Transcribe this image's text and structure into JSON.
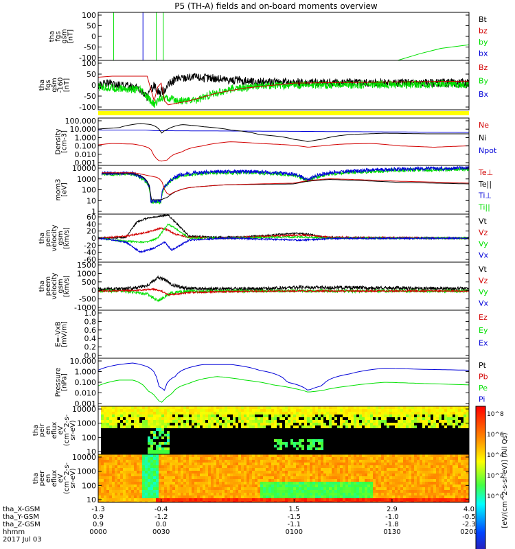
{
  "title": "P5 (TH-A) fields and on-board moments overview",
  "colors": {
    "black": "#000000",
    "red": "#d20000",
    "green": "#00e000",
    "blue": "#0000d8",
    "yellow": "#ffff00"
  },
  "chart_data": [
    {
      "type": "line",
      "id": "fgs",
      "ylabel_lines": [
        "tha",
        "fgs",
        "gsm",
        "[nT]"
      ],
      "yticks": [
        "100",
        "50",
        "0",
        "-50",
        "-100"
      ],
      "ylim": [
        -100,
        100
      ],
      "legend": [
        {
          "label": "Bt",
          "color": "black"
        },
        {
          "label": "bz",
          "color": "red"
        },
        {
          "label": "by",
          "color": "green"
        },
        {
          "label": "bx",
          "color": "blue"
        }
      ],
      "series": [
        {
          "name": "by",
          "color": "green",
          "x": [
            2.98,
            3.3,
            3.6,
            4.0
          ],
          "y": [
            -100,
            -72,
            -50,
            -35
          ]
        },
        {
          "name": "bx",
          "color": "blue",
          "x": [
            -0.66,
            -0.66
          ],
          "y": [
            -100,
            100
          ]
        },
        {
          "name": "by",
          "color": "green",
          "x": [
            -1.08,
            -1.08
          ],
          "y": [
            -100,
            100
          ]
        },
        {
          "name": "by",
          "color": "green",
          "x": [
            -0.47,
            -0.47
          ],
          "y": [
            -100,
            100
          ]
        },
        {
          "name": "by",
          "color": "green",
          "x": [
            -0.37,
            -0.37
          ],
          "y": [
            -100,
            100
          ]
        }
      ]
    },
    {
      "type": "line",
      "id": "fgs_ssl",
      "ylabel_lines": [
        "tha",
        "fgs",
        "gsm",
        "-160",
        "[nT]"
      ],
      "yticks": [
        "100",
        "50",
        "0",
        "-50",
        "-100"
      ],
      "ylim": [
        -125,
        125
      ],
      "legend": [
        {
          "label": "Bz",
          "color": "red"
        },
        {
          "label": "By",
          "color": "green"
        },
        {
          "label": "Bx",
          "color": "blue"
        }
      ],
      "series": [
        {
          "name": "Bt",
          "color": "black",
          "x": [
            -1.3,
            -1.15,
            -1.08,
            -0.75,
            -0.6,
            -0.5,
            -0.42,
            -0.35,
            -0.2,
            0.0,
            0.3,
            0.6,
            1.0,
            4.0
          ],
          "y": [
            -5,
            10,
            0,
            -10,
            -60,
            0,
            -40,
            -20,
            30,
            40,
            35,
            25,
            15,
            10
          ],
          "noise": 22
        },
        {
          "name": "By",
          "color": "green",
          "x": [
            -1.3,
            -1.1,
            -0.9,
            -0.7,
            -0.5,
            -0.4,
            -0.3,
            -0.1,
            0.1,
            0.3,
            0.6,
            1.0,
            1.5,
            4.0
          ],
          "y": [
            -10,
            -15,
            -20,
            -25,
            -100,
            -60,
            -70,
            -80,
            -75,
            -50,
            -20,
            -5,
            0,
            5
          ],
          "noise": 20
        },
        {
          "name": "Bz",
          "color": "red",
          "x": [
            -1.3,
            -1.1,
            -0.6,
            -0.5,
            -0.45,
            -0.4,
            -0.35,
            -0.3,
            0.0,
            0.4,
            0.8,
            1.5,
            4.0
          ],
          "y": [
            40,
            45,
            45,
            -80,
            -10,
            10,
            -80,
            -100,
            -80,
            -40,
            -15,
            10,
            20
          ]
        }
      ]
    },
    {
      "type": "line",
      "id": "density",
      "log": true,
      "ylabel_lines": [
        "Density",
        "[cm-3]"
      ],
      "yticks": [
        "100.000",
        "10.000",
        "1.000",
        "0.100",
        "0.010",
        "0.001"
      ],
      "ylim": [
        0.001,
        1000
      ],
      "legend": [
        {
          "label": "Ne",
          "color": "red"
        },
        {
          "label": "Ni",
          "color": "black"
        },
        {
          "label": "Npot",
          "color": "blue"
        }
      ],
      "series": [
        {
          "name": "Npot",
          "color": "blue",
          "x": [
            -1.3,
            -0.6,
            -0.5,
            4.0
          ],
          "y": [
            30,
            30,
            25,
            15
          ]
        },
        {
          "name": "Ni",
          "color": "black",
          "x": [
            -1.3,
            -1.0,
            -0.7,
            -0.55,
            -0.4,
            -0.3,
            -0.1,
            0.2,
            0.6,
            1.0,
            1.5,
            1.7,
            1.9,
            2.3,
            2.8,
            3.4,
            4.0
          ],
          "y": [
            40,
            60,
            200,
            150,
            10,
            40,
            150,
            80,
            30,
            8,
            2,
            1,
            2,
            8,
            12,
            10,
            10
          ]
        },
        {
          "name": "Ne",
          "color": "red",
          "x": [
            -1.3,
            -1.1,
            -0.8,
            -0.6,
            -0.5,
            -0.42,
            -0.3,
            -0.1,
            0.2,
            0.6,
            1.0,
            1.4,
            1.7,
            1.9,
            2.2,
            2.6,
            3.0,
            3.5,
            4.0
          ],
          "y": [
            0.4,
            0.6,
            0.5,
            0.2,
            0.01,
            0.003,
            0.005,
            0.05,
            0.3,
            1,
            0.6,
            0.4,
            0.2,
            0.3,
            0.5,
            0.6,
            0.3,
            0.2,
            0.3
          ]
        }
      ]
    },
    {
      "type": "line",
      "id": "temperature",
      "log": true,
      "ylabel_lines": [
        "mom3",
        "[eV]"
      ],
      "yticks": [
        "10000",
        "1000",
        "100",
        "10",
        "1"
      ],
      "ylim": [
        1,
        10000
      ],
      "legend": [
        {
          "label": "Te⊥",
          "color": "red"
        },
        {
          "label": "Te||",
          "color": "black"
        },
        {
          "label": "Ti⊥",
          "color": "blue"
        },
        {
          "label": "Ti||",
          "color": "green"
        }
      ],
      "series": [
        {
          "name": "Ti||",
          "color": "green",
          "x": [
            -1.25,
            -0.8,
            -0.7,
            -0.55,
            -0.4,
            -0.3,
            -0.1,
            0.3,
            1.0,
            1.5,
            1.7,
            2.0,
            3.0,
            4.0
          ],
          "y": [
            2000,
            2000,
            1000,
            10,
            10,
            300,
            1500,
            2500,
            2500,
            1500,
            500,
            2000,
            4000,
            5000
          ],
          "noise": 0.15
        },
        {
          "name": "Ti⊥",
          "color": "blue",
          "x": [
            -1.25,
            -0.8,
            -0.7,
            -0.55,
            -0.4,
            -0.3,
            -0.1,
            0.3,
            1.0,
            1.5,
            1.7,
            2.0,
            3.0,
            4.0
          ],
          "y": [
            2200,
            2200,
            1200,
            12,
            12,
            350,
            1800,
            3000,
            3000,
            1800,
            600,
            2500,
            5000,
            6000
          ],
          "noise": 0.15
        },
        {
          "name": "Te||",
          "color": "black",
          "x": [
            -1.25,
            -0.8,
            -0.7,
            -0.55,
            -0.4,
            -0.3,
            0.0,
            0.5,
            1.0,
            1.5,
            1.7,
            2.0,
            3.0,
            4.0
          ],
          "y": [
            2000,
            2000,
            1500,
            15,
            15,
            25,
            150,
            250,
            280,
            300,
            500,
            700,
            400,
            300
          ]
        },
        {
          "name": "Te⊥",
          "color": "red",
          "x": [
            -1.25,
            -0.8,
            -0.6,
            -0.45,
            -0.35,
            -0.3,
            0.0,
            0.5,
            1.0,
            1.5,
            1.7,
            2.0,
            3.0,
            4.0
          ],
          "y": [
            2500,
            2500,
            1500,
            1000,
            100,
            30,
            150,
            250,
            300,
            350,
            550,
            800,
            500,
            350
          ]
        }
      ]
    },
    {
      "type": "line",
      "id": "peim_velocity",
      "ylabel_lines": [
        "tha",
        "peim",
        "velocity",
        "gsm",
        "[km/s]"
      ],
      "yticks": [
        "60",
        "40",
        "20",
        "0",
        "-20",
        "-40",
        "-60"
      ],
      "ylim": [
        -60,
        60
      ],
      "legend": [
        {
          "label": "Vt",
          "color": "black"
        },
        {
          "label": "Vz",
          "color": "red"
        },
        {
          "label": "Vy",
          "color": "green"
        },
        {
          "label": "Vx",
          "color": "blue"
        }
      ],
      "series": [
        {
          "name": "Vt",
          "color": "black",
          "x": [
            -1.3,
            -0.9,
            -0.75,
            -0.6,
            -0.4,
            -0.3,
            -0.2,
            0.0,
            0.4,
            0.8,
            1.2,
            1.5,
            1.7,
            1.9,
            2.2,
            4.0
          ],
          "y": [
            0,
            2,
            40,
            50,
            55,
            58,
            40,
            5,
            2,
            3,
            8,
            12,
            10,
            3,
            1,
            0
          ],
          "noise": 2
        },
        {
          "name": "Vz",
          "color": "red",
          "x": [
            -1.3,
            -0.9,
            -0.6,
            -0.4,
            -0.3,
            -0.2,
            0.0,
            0.5,
            1.2,
            1.6,
            2.0,
            4.0
          ],
          "y": [
            0,
            5,
            15,
            25,
            20,
            10,
            2,
            0,
            5,
            8,
            2,
            0
          ],
          "noise": 2
        },
        {
          "name": "Vy",
          "color": "green",
          "x": [
            -1.3,
            -0.9,
            -0.6,
            -0.45,
            -0.3,
            -0.2,
            0.0,
            0.5,
            1.2,
            1.6,
            2.0,
            4.0
          ],
          "y": [
            0,
            -8,
            -10,
            0,
            35,
            25,
            0,
            0,
            2,
            3,
            0,
            0
          ],
          "noise": 2
        },
        {
          "name": "Vx",
          "color": "blue",
          "x": [
            -1.3,
            -0.9,
            -0.7,
            -0.5,
            -0.35,
            -0.25,
            -0.15,
            0.0,
            0.5,
            1.2,
            1.6,
            2.0,
            4.0
          ],
          "y": [
            0,
            -10,
            -35,
            -25,
            -10,
            -30,
            -20,
            -5,
            0,
            -3,
            -5,
            -1,
            0
          ],
          "noise": 2
        }
      ]
    },
    {
      "type": "line",
      "id": "peem_velocity",
      "ylabel_lines": [
        "tha",
        "peem",
        "velocity",
        "gsm",
        "[km/s]"
      ],
      "yticks": [
        "1500",
        "1000",
        "500",
        "0",
        "-500",
        "-1000"
      ],
      "ylim": [
        -1000,
        1500
      ],
      "legend": [
        {
          "label": "Vt",
          "color": "black"
        },
        {
          "label": "Vz",
          "color": "red"
        },
        {
          "label": "Vy",
          "color": "green"
        },
        {
          "label": "Vx",
          "color": "blue"
        }
      ],
      "series": [
        {
          "name": "Vt",
          "color": "black",
          "x": [
            -1.3,
            -1.0,
            -0.8,
            -0.6,
            -0.45,
            -0.35,
            -0.25,
            0.0,
            0.5,
            1.2,
            1.6,
            2.0,
            3.0,
            4.0
          ],
          "y": [
            100,
            100,
            150,
            300,
            700,
            600,
            300,
            120,
            100,
            130,
            200,
            180,
            150,
            120
          ],
          "noise": 90
        },
        {
          "name": "Vy",
          "color": "green",
          "x": [
            -1.3,
            -1.0,
            -0.8,
            -0.6,
            -0.45,
            -0.35,
            -0.25,
            0.0,
            0.5,
            4.0
          ],
          "y": [
            0,
            0,
            -50,
            -150,
            -500,
            -300,
            -100,
            -20,
            0,
            0
          ],
          "noise": 80
        },
        {
          "name": "Vz",
          "color": "red",
          "x": [
            -1.3,
            -0.8,
            -0.5,
            -0.4,
            -0.3,
            -0.15,
            0.0,
            0.5,
            1.5,
            4.0
          ],
          "y": [
            0,
            20,
            100,
            0,
            -200,
            -150,
            -80,
            -30,
            0,
            0
          ],
          "noise": 40
        }
      ]
    },
    {
      "type": "line",
      "id": "efield",
      "ylabel_lines": [
        "E=-VxB",
        "[mV/m]"
      ],
      "yticks": [
        "1.0",
        "0.8",
        "0.6",
        "0.4",
        "0.2",
        "0.0"
      ],
      "ylim": [
        0,
        1
      ],
      "legend": [
        {
          "label": "Ez",
          "color": "red"
        },
        {
          "label": "Ey",
          "color": "green"
        },
        {
          "label": "Ex",
          "color": "blue"
        }
      ],
      "series": []
    },
    {
      "type": "line",
      "id": "pressure",
      "log": true,
      "ylabel_lines": [
        "Pressure",
        "[nPa]"
      ],
      "yticks": [
        "10.000",
        "1.000",
        "0.100",
        "0.010",
        "0.001"
      ],
      "ylim": [
        0.001,
        10
      ],
      "legend": [
        {
          "label": "Pt",
          "color": "black"
        },
        {
          "label": "Pb",
          "color": "red"
        },
        {
          "label": "Pe",
          "color": "green"
        },
        {
          "label": "Pi",
          "color": "blue"
        }
      ],
      "series": [
        {
          "name": "Pi",
          "color": "blue",
          "x": [
            -1.3,
            -1.0,
            -0.8,
            -0.6,
            -0.45,
            -0.35,
            -0.2,
            0.2,
            0.6,
            1.0,
            1.4,
            1.7,
            1.9,
            2.3,
            2.8,
            3.3,
            4.0
          ],
          "y": [
            1,
            3,
            4,
            2,
            0.05,
            0.02,
            0.3,
            3,
            3,
            1,
            0.1,
            0.02,
            0.05,
            0.5,
            1.5,
            1.2,
            1
          ]
        },
        {
          "name": "Pe",
          "color": "green",
          "x": [
            -1.3,
            -1.0,
            -0.8,
            -0.6,
            -0.45,
            -0.38,
            -0.25,
            0.0,
            0.4,
            0.8,
            1.2,
            1.5,
            1.7,
            1.9,
            2.3,
            2.8,
            3.3,
            4.0
          ],
          "y": [
            0.05,
            0.15,
            0.15,
            0.02,
            0.003,
            0.002,
            0.01,
            0.08,
            0.3,
            0.15,
            0.06,
            0.03,
            0.015,
            0.02,
            0.05,
            0.1,
            0.08,
            0.06
          ]
        }
      ]
    },
    {
      "type": "heatmap",
      "id": "peir",
      "ylabel_lines": [
        "tha",
        "peir",
        "en",
        "eflux",
        "eV",
        "(cm^2-s-",
        "sr-eV)"
      ],
      "yticks": [
        "10000",
        "1000",
        "100",
        "10"
      ],
      "ylim": [
        5,
        30000
      ]
    },
    {
      "type": "heatmap",
      "id": "peer",
      "ylabel_lines": [
        "tha",
        "peer",
        "en",
        "eflux",
        "eV",
        "(cm^2-s-",
        "sr-eV)"
      ],
      "yticks": [
        "10000",
        "1000",
        "100",
        "10"
      ],
      "ylim": [
        5,
        30000
      ]
    }
  ],
  "colorbar": {
    "label": "[eV/(cm^2-s-sr-eV)] (All Qs)",
    "ticks": [
      "10^8",
      "10^6",
      "10^4",
      "10^2",
      "10^0"
    ]
  },
  "xaxis": {
    "rows": [
      {
        "label": "tha_X-GSM",
        "values": [
          "-1.3",
          "-0.4",
          "1.5",
          "2.9",
          "4.0"
        ]
      },
      {
        "label": "tha_Y-GSM",
        "values": [
          "0.9",
          "-1.2",
          "-1.5",
          "-1.0",
          "-0.5"
        ]
      },
      {
        "label": "tha_Z-GSM",
        "values": [
          "0.9",
          "0.0",
          "-1.1",
          "-1.8",
          "-2.3"
        ]
      },
      {
        "label": "hhmm",
        "values": [
          "0000",
          "0030",
          "0100",
          "0130",
          "0200"
        ]
      }
    ],
    "date": "2017 Jul 03"
  }
}
